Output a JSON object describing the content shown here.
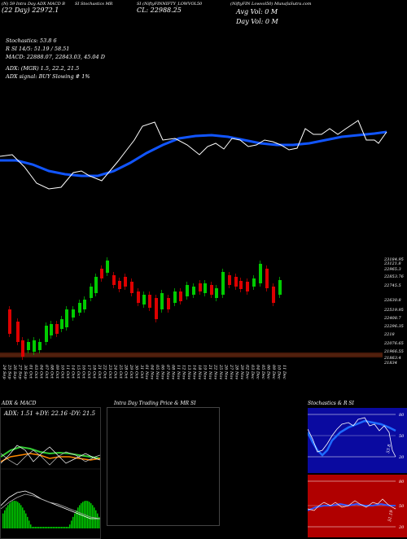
{
  "header": {
    "left_line1": "(N) 59 Intra Day ADX MACD B",
    "left_line2": "(22 Day) 22972.1",
    "mid_line1": "SI Stochastics MR",
    "mid2_line1": "SI (NiftyFINNIFTY_LOWVOL50",
    "mid2_line2": "CL: 22988.25",
    "right_line1": "(NiftyFIN Lowvol50) MunafaSutra.com",
    "right_line2": "Avg Vol: 0  M",
    "right_line3": "Day Vol: 0  M"
  },
  "info": {
    "stochastics": "Stochastics: 53.8        6",
    "rsi": "R          SI 14/5: 51.19 / 58.51",
    "macd": "MACD: 22888.07, 22843.03, 45.04  D",
    "adx": "ADX:                          (MGR) 1.5,  22.2,  21.5",
    "adx_signal": "ADX  signal:                        BUY Slowing # 1%"
  },
  "price_axis": [
    "23184.95",
    "23121.8",
    "22965.3",
    "22853.76",
    "22745.5",
    "22630.8",
    "22519.95",
    "22408.7",
    "22296.35",
    "2218",
    "22076.65",
    "21966.55",
    "21863.4",
    "21834"
  ],
  "dates": [
    "24 Sep",
    "25 Sep",
    "26 Sep",
    "27 Sep",
    "30 Sep",
    "01 Oct",
    "03 Oct",
    "04 Oct",
    "07 Oct",
    "08 Oct",
    "09 Oct",
    "10 Oct",
    "11 Oct",
    "14 Oct",
    "15 Oct",
    "16 Oct",
    "17 Oct",
    "18 Oct",
    "21 Oct",
    "22 Oct",
    "23 Oct",
    "24 Oct",
    "25 Oct",
    "28 Oct",
    "29 Oct",
    "30 Oct",
    "31 Oct",
    "01 Nov",
    "04 Nov",
    "05 Nov",
    "06 Nov",
    "07 Nov",
    "08 Nov",
    "11 Nov",
    "12 Nov",
    "13 Nov",
    "14 Nov",
    "18 Nov",
    "19 Nov",
    "21 Nov",
    "22 Nov",
    "25 Nov",
    "26 Nov",
    "27 Nov",
    "28 Nov",
    "29 Nov",
    "02 Dec",
    "03 Dec",
    "04 Dec",
    "05 Dec",
    "06 Dec",
    "09 Dec",
    "10 Dec",
    "11 Dec"
  ],
  "panels": {
    "adx_title": "ADX  & MACD",
    "adx_values": "ADX: 1.51  +DY: 22.16  -DY: 21.5",
    "intraday_title": "Intra  Day Trading Price  & MR                    SI",
    "stoch_title": "Stochastics & R                    SI",
    "stoch_ticks": [
      "80",
      "50",
      "20"
    ],
    "rsi_ticks": [
      "80",
      "50",
      "20"
    ],
    "stoch_val": "53.8",
    "rsi_val": "51.19"
  },
  "colors": {
    "up": "#00cc00",
    "down": "#dd0000",
    "ma": "#1155ff",
    "band": "#4a1a0a"
  }
}
